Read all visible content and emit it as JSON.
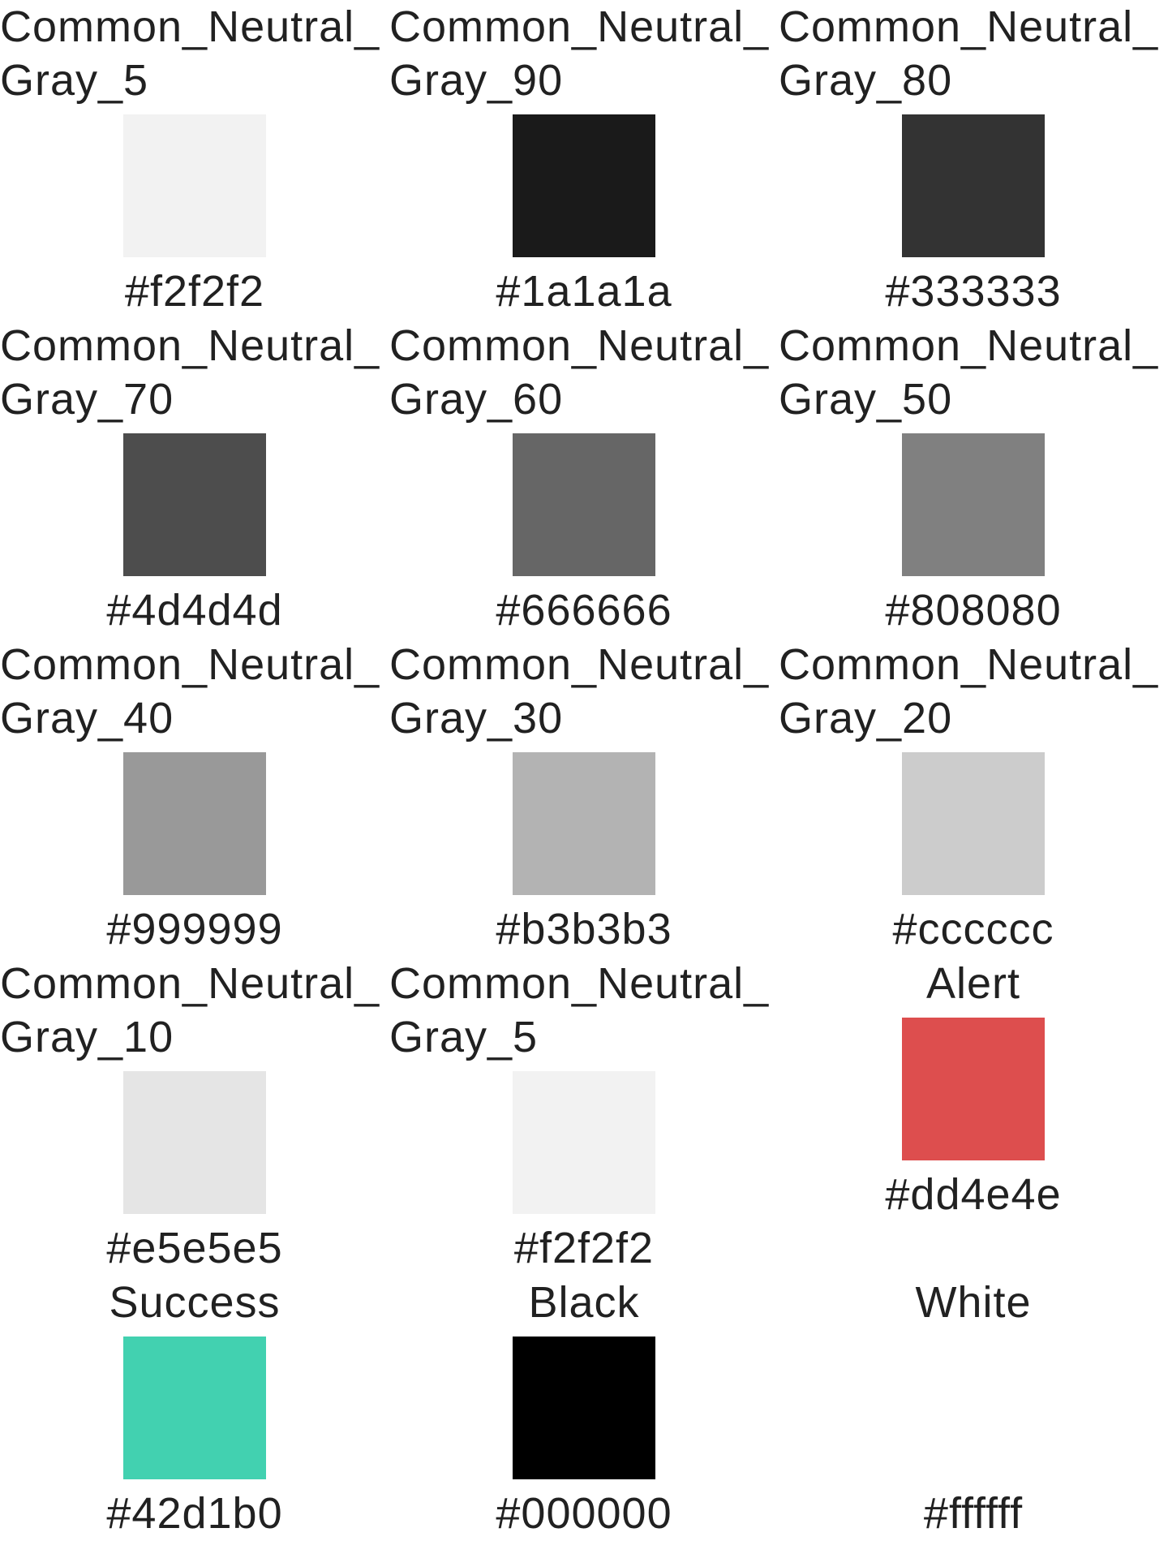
{
  "swatches": [
    {
      "name": "Common_Neutral​_Gray_5",
      "hex": "#f2f2f2",
      "color": "#f2f2f2"
    },
    {
      "name": "Common_Neutral​_Gray_90",
      "hex": "#1a1a1a",
      "color": "#1a1a1a"
    },
    {
      "name": "Common_Neutral​_Gray_80",
      "hex": "#333333",
      "color": "#333333"
    },
    {
      "name": "Common_Neutral​_Gray_70",
      "hex": "#4d4d4d",
      "color": "#4d4d4d"
    },
    {
      "name": "Common_Neutral​_Gray_60",
      "hex": "#666666",
      "color": "#666666"
    },
    {
      "name": "Common_Neutral​_Gray_50",
      "hex": "#808080",
      "color": "#808080"
    },
    {
      "name": "Common_Neutral​_Gray_40",
      "hex": "#999999",
      "color": "#999999"
    },
    {
      "name": "Common_Neutral​_Gray_30",
      "hex": "#b3b3b3",
      "color": "#b3b3b3"
    },
    {
      "name": "Common_Neutral​_Gray_20",
      "hex": "#cccccc",
      "color": "#cccccc"
    },
    {
      "name": "Common_Neutral​_Gray_10",
      "hex": "#e5e5e5",
      "color": "#e5e5e5"
    },
    {
      "name": "Common_Neutral​_Gray_5",
      "hex": "#f2f2f2",
      "color": "#f2f2f2"
    },
    {
      "name": "Alert",
      "hex": "#dd4e4e",
      "color": "#dd4e4e"
    },
    {
      "name": "Success",
      "hex": "#42d1b0",
      "color": "#42d1b0"
    },
    {
      "name": "Black",
      "hex": "#000000",
      "color": "#000000"
    },
    {
      "name": "White",
      "hex": "#ffffff",
      "color": "#ffffff"
    }
  ]
}
